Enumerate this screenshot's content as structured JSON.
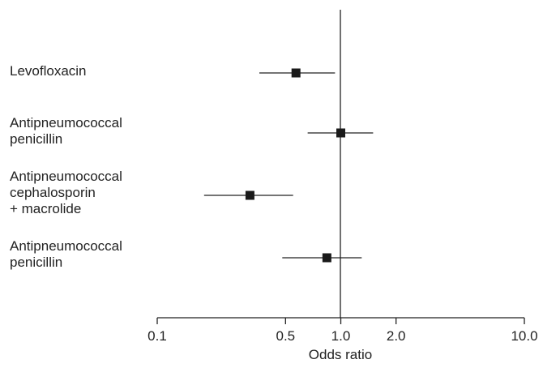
{
  "chart_data": {
    "type": "forest",
    "title": "",
    "xlabel": "Odds ratio",
    "ylabel": "",
    "x_scale": "log",
    "xlim": [
      0.1,
      10.0
    ],
    "xticks": [
      "0.1",
      "0.5",
      "1.0",
      "2.0",
      "10.0"
    ],
    "reference_line": 1.0,
    "grid": false,
    "rows": [
      {
        "label": "Levofloxacin",
        "or": 0.57,
        "ci_low": 0.36,
        "ci_high": 0.93
      },
      {
        "label": "Antipneumococcal\npenicillin",
        "or": 1.0,
        "ci_low": 0.66,
        "ci_high": 1.5
      },
      {
        "label": "Antipneumococcal\ncephalosporin\n+ macrolide",
        "or": 0.32,
        "ci_low": 0.18,
        "ci_high": 0.55
      },
      {
        "label": "Antipneumococcal\npenicillin",
        "or": 0.84,
        "ci_low": 0.48,
        "ci_high": 1.3
      }
    ]
  }
}
